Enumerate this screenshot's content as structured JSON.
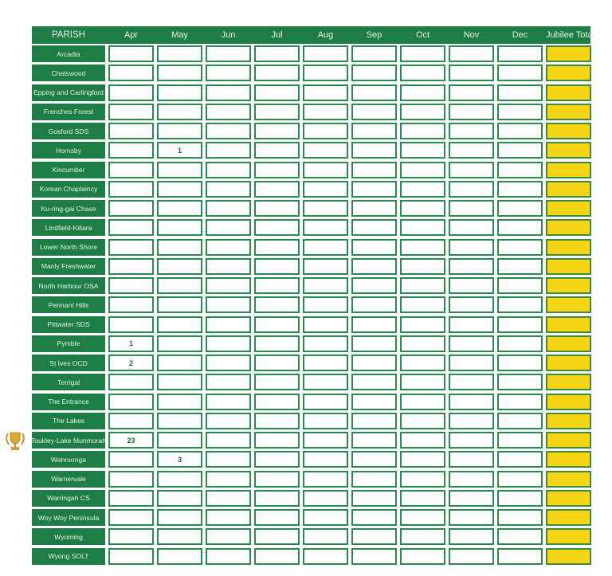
{
  "header": {
    "columns": [
      "PARISH",
      "Apr",
      "May",
      "Jun",
      "Jul",
      "Aug",
      "Sep",
      "Oct",
      "Nov",
      "Dec",
      "Jubilee Total"
    ]
  },
  "colors": {
    "header_green": "#1d7d44",
    "total_yellow": "#f6d517",
    "border_green": "#2a8a4f"
  },
  "rows": [
    {
      "parish": "Arcadia",
      "values": [
        "",
        "",
        "",
        "",
        "",
        "",
        "",
        "",
        "",
        ""
      ]
    },
    {
      "parish": "Chatswood",
      "values": [
        "",
        "",
        "",
        "",
        "",
        "",
        "",
        "",
        "",
        ""
      ]
    },
    {
      "parish": "Epping and Carlingford",
      "values": [
        "",
        "",
        "",
        "",
        "",
        "",
        "",
        "",
        "",
        ""
      ]
    },
    {
      "parish": "Frenches Forest",
      "values": [
        "",
        "",
        "",
        "",
        "",
        "",
        "",
        "",
        "",
        ""
      ]
    },
    {
      "parish": "Gosford SDS",
      "values": [
        "",
        "",
        "",
        "",
        "",
        "",
        "",
        "",
        "",
        ""
      ]
    },
    {
      "parish": "Hornsby",
      "values": [
        "",
        "1",
        "",
        "",
        "",
        "",
        "",
        "",
        "",
        ""
      ]
    },
    {
      "parish": "Kincumber",
      "values": [
        "",
        "",
        "",
        "",
        "",
        "",
        "",
        "",
        "",
        ""
      ]
    },
    {
      "parish": "Korean Chaplaincy",
      "values": [
        "",
        "",
        "",
        "",
        "",
        "",
        "",
        "",
        "",
        ""
      ]
    },
    {
      "parish": "Ku-ring-gai Chase",
      "values": [
        "",
        "",
        "",
        "",
        "",
        "",
        "",
        "",
        "",
        ""
      ]
    },
    {
      "parish": "Lindfield-Killara",
      "values": [
        "",
        "",
        "",
        "",
        "",
        "",
        "",
        "",
        "",
        ""
      ]
    },
    {
      "parish": "Lower North Shore",
      "values": [
        "",
        "",
        "",
        "",
        "",
        "",
        "",
        "",
        "",
        ""
      ]
    },
    {
      "parish": "Manly Freshwater",
      "values": [
        "",
        "",
        "",
        "",
        "",
        "",
        "",
        "",
        "",
        ""
      ]
    },
    {
      "parish": "North Harbour OSA",
      "values": [
        "",
        "",
        "",
        "",
        "",
        "",
        "",
        "",
        "",
        ""
      ]
    },
    {
      "parish": "Pennant Hills",
      "values": [
        "",
        "",
        "",
        "",
        "",
        "",
        "",
        "",
        "",
        ""
      ]
    },
    {
      "parish": "Pittwater SDS",
      "values": [
        "",
        "",
        "",
        "",
        "",
        "",
        "",
        "",
        "",
        ""
      ]
    },
    {
      "parish": "Pymble",
      "values": [
        "1",
        "",
        "",
        "",
        "",
        "",
        "",
        "",
        "",
        ""
      ]
    },
    {
      "parish": "St Ives OCD",
      "values": [
        "2",
        "",
        "",
        "",
        "",
        "",
        "",
        "",
        "",
        ""
      ]
    },
    {
      "parish": "Terrigal",
      "values": [
        "",
        "",
        "",
        "",
        "",
        "",
        "",
        "",
        "",
        ""
      ]
    },
    {
      "parish": "The Entrance",
      "values": [
        "",
        "",
        "",
        "",
        "",
        "",
        "",
        "",
        "",
        ""
      ]
    },
    {
      "parish": "The Lakes",
      "values": [
        "",
        "",
        "",
        "",
        "",
        "",
        "",
        "",
        "",
        ""
      ]
    },
    {
      "parish": "Toukley-Lake Munmorah",
      "values": [
        "23",
        "",
        "",
        "",
        "",
        "",
        "",
        "",
        "",
        ""
      ],
      "trophy": "trophy-icon"
    },
    {
      "parish": "Wahroonga",
      "values": [
        "",
        "3",
        "",
        "",
        "",
        "",
        "",
        "",
        "",
        ""
      ]
    },
    {
      "parish": "Warnervale",
      "values": [
        "",
        "",
        "",
        "",
        "",
        "",
        "",
        "",
        "",
        ""
      ]
    },
    {
      "parish": "Warringah CS",
      "values": [
        "",
        "",
        "",
        "",
        "",
        "",
        "",
        "",
        "",
        ""
      ]
    },
    {
      "parish": "Woy Woy Peninsula",
      "values": [
        "",
        "",
        "",
        "",
        "",
        "",
        "",
        "",
        "",
        ""
      ]
    },
    {
      "parish": "Wyoming",
      "values": [
        "",
        "",
        "",
        "",
        "",
        "",
        "",
        "",
        "",
        ""
      ]
    },
    {
      "parish": "Wyong SOLT",
      "values": [
        "",
        "",
        "",
        "",
        "",
        "",
        "",
        "",
        "",
        ""
      ]
    }
  ]
}
